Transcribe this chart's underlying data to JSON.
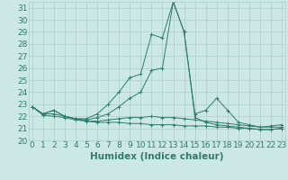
{
  "xlabel": "Humidex (Indice chaleur)",
  "x_values": [
    0,
    1,
    2,
    3,
    4,
    5,
    6,
    7,
    8,
    9,
    10,
    11,
    12,
    13,
    14,
    15,
    16,
    17,
    18,
    19,
    20,
    21,
    22,
    23
  ],
  "series1": [
    22.8,
    22.2,
    22.5,
    22.0,
    21.8,
    21.8,
    22.2,
    23.0,
    24.0,
    25.2,
    25.5,
    28.8,
    28.5,
    31.5,
    29.0,
    22.2,
    22.5,
    23.5,
    22.5,
    21.5,
    21.3,
    21.1,
    21.2,
    21.3
  ],
  "series2": [
    22.8,
    22.2,
    22.5,
    22.0,
    21.8,
    21.7,
    21.9,
    22.2,
    22.8,
    23.5,
    24.0,
    25.8,
    26.0,
    31.5,
    29.0,
    21.9,
    21.5,
    21.3,
    21.2,
    21.1,
    21.0,
    20.9,
    20.9,
    21.0
  ],
  "series3": [
    22.8,
    22.2,
    22.2,
    22.0,
    21.8,
    21.6,
    21.6,
    21.7,
    21.8,
    21.9,
    21.9,
    22.0,
    21.9,
    21.9,
    21.8,
    21.7,
    21.6,
    21.5,
    21.4,
    21.3,
    21.2,
    21.1,
    21.1,
    21.1
  ],
  "series4": [
    22.8,
    22.1,
    22.0,
    21.9,
    21.7,
    21.6,
    21.5,
    21.5,
    21.5,
    21.4,
    21.4,
    21.3,
    21.3,
    21.3,
    21.2,
    21.2,
    21.2,
    21.1,
    21.1,
    21.0,
    21.0,
    20.9,
    20.9,
    21.0
  ],
  "line_color": "#2e7d6e",
  "bg_color": "#cce8e4",
  "grid_color": "#aacfc9",
  "ylim": [
    20,
    31.5
  ],
  "yticks": [
    20,
    21,
    22,
    23,
    24,
    25,
    26,
    27,
    28,
    29,
    30,
    31
  ],
  "xlim": [
    -0.3,
    23.3
  ],
  "tick_fontsize": 6.5,
  "label_fontsize": 7.5
}
